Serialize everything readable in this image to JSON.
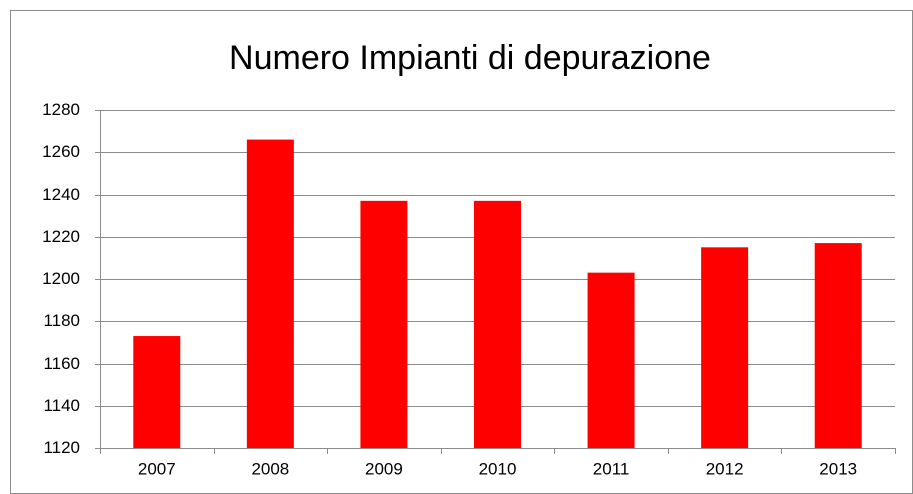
{
  "chart_data": {
    "type": "bar",
    "title": "Numero Impianti di depurazione",
    "categories": [
      "2007",
      "2008",
      "2009",
      "2010",
      "2011",
      "2012",
      "2013"
    ],
    "values": [
      1173,
      1266,
      1237,
      1237,
      1203,
      1215,
      1217
    ],
    "color": "#ff0000",
    "ylim": [
      1120,
      1280
    ],
    "yticks": [
      1120,
      1140,
      1160,
      1180,
      1200,
      1220,
      1240,
      1260,
      1280
    ],
    "grid": true
  }
}
